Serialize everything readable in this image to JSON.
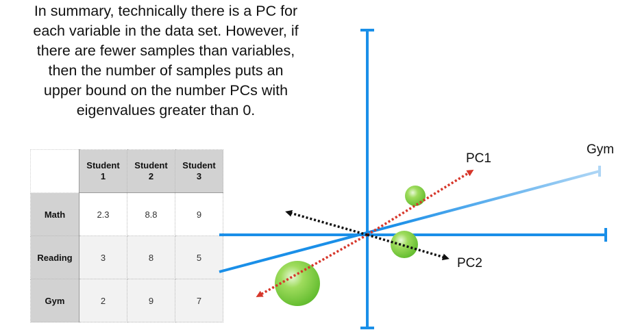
{
  "summary_lines": [
    "In summary, technically there is a PC for",
    "each variable in the data set. However, if",
    "there are fewer samples than variables,",
    "then the number of samples puts an",
    "upper bound on the number PCs with",
    "eigenvalues greater than 0."
  ],
  "table": {
    "columns": [
      [
        "Student",
        "1"
      ],
      [
        "Student",
        "2"
      ],
      [
        "Student",
        "3"
      ]
    ],
    "rows": [
      {
        "label": "Math",
        "values": [
          "2.3",
          "8.8",
          "9"
        ]
      },
      {
        "label": "Reading",
        "values": [
          "3",
          "8",
          "5"
        ]
      },
      {
        "label": "Gym",
        "values": [
          "2",
          "9",
          "7"
        ]
      }
    ]
  },
  "plot": {
    "axis_labels": {
      "gym": "Gym"
    },
    "pc_labels": {
      "pc1": "PC1",
      "pc2": "PC2"
    },
    "colors": {
      "axis": "#1a8fe8",
      "gym_axis_end": "#aed6f5",
      "pc1_arrow": "#d6362a",
      "pc2_arrow": "#111111",
      "points": "#7dcf3e"
    }
  }
}
